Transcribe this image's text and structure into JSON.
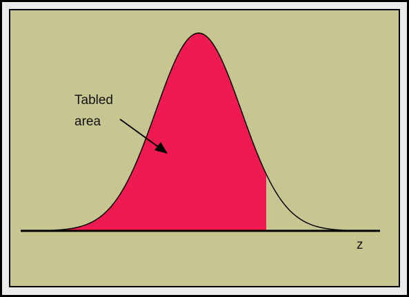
{
  "annotation": {
    "lines": [
      "Tabled",
      "area"
    ]
  },
  "axis_label": "z"
}
